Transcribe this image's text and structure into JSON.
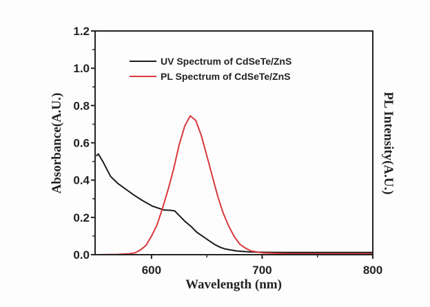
{
  "chart_data": {
    "type": "line",
    "xlabel": "Wavelength (nm)",
    "ylabel": "Absorbance(A.U.)",
    "y2label": "PL Intensity(A.U.)",
    "xlim": [
      549,
      800
    ],
    "ylim": [
      0,
      1.2
    ],
    "xticks": [
      600,
      700,
      800
    ],
    "yticks": [
      "0.0",
      "0.2",
      "0.4",
      "0.6",
      "0.8",
      "1.0",
      "1.2"
    ],
    "grid": false,
    "legend_position": "top-center",
    "series": [
      {
        "name": "UV Spectrum of CdSeTe/ZnS",
        "color": "#1a1a1a",
        "x": [
          550,
          552,
          556,
          563,
          570,
          577,
          584,
          592,
          601,
          611,
          617,
          621,
          625,
          630,
          636,
          641,
          646,
          652,
          657,
          662,
          667,
          677,
          688,
          700,
          720,
          760,
          800
        ],
        "y": [
          0.53,
          0.54,
          0.5,
          0.42,
          0.38,
          0.35,
          0.32,
          0.29,
          0.26,
          0.24,
          0.238,
          0.235,
          0.21,
          0.18,
          0.15,
          0.12,
          0.1,
          0.075,
          0.055,
          0.04,
          0.03,
          0.02,
          0.015,
          0.013,
          0.012,
          0.012,
          0.012
        ]
      },
      {
        "name": "PL Spectrum of CdSeTe/ZnS",
        "color": "#d9363a",
        "x": [
          550,
          570,
          580,
          585,
          590,
          595,
          600,
          605,
          610,
          615,
          620,
          625,
          630,
          635,
          640,
          645,
          650,
          655,
          660,
          665,
          670,
          675,
          680,
          685,
          690,
          700,
          720,
          760,
          800
        ],
        "y": [
          0.0,
          0.002,
          0.005,
          0.01,
          0.025,
          0.05,
          0.1,
          0.16,
          0.25,
          0.35,
          0.46,
          0.59,
          0.69,
          0.745,
          0.72,
          0.64,
          0.53,
          0.42,
          0.31,
          0.22,
          0.15,
          0.095,
          0.055,
          0.035,
          0.02,
          0.01,
          0.006,
          0.005,
          0.005
        ]
      }
    ]
  }
}
